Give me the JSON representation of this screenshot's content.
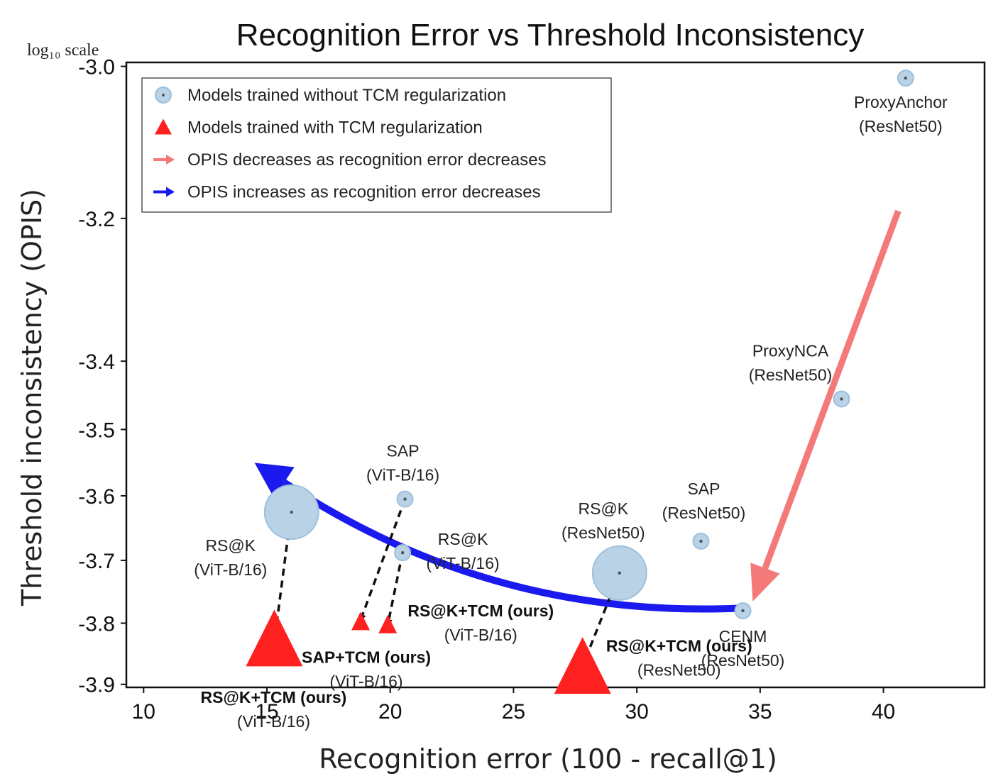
{
  "chart_data": {
    "type": "scatter",
    "title": "Recognition Error vs Threshold Inconsistency",
    "xlabel": "Recognition error (100 - recall@1)",
    "ylabel": "Threshold inconsistency (OPIS)",
    "y_scale_note": "log₁₀ scale",
    "xlim": [
      9.3,
      44.1
    ],
    "ylim": [
      -3.905,
      -2.995
    ],
    "x_ticks": [
      10,
      15,
      20,
      25,
      30,
      35,
      40
    ],
    "y_ticks": [
      -3.0,
      -3.2,
      -3.4,
      -3.5,
      -3.6,
      -3.7,
      -3.8,
      -3.9
    ],
    "legend": [
      {
        "label": "Models trained without TCM regularization",
        "marker": "circle",
        "color": "#b9d2e6"
      },
      {
        "label": "Models trained with TCM regularization",
        "marker": "triangle",
        "color": "#ff2020"
      },
      {
        "label": "OPIS decreases as recognition error decreases",
        "marker": "arrow",
        "color": "#f47a7a"
      },
      {
        "label": "OPIS increases as recognition error decreases",
        "marker": "arrow",
        "color": "#1a1aee"
      }
    ],
    "series": [
      {
        "name": "Models trained without TCM regularization",
        "marker": "circle",
        "color": "#b9d2e6",
        "points": [
          {
            "id": "proxyanchor",
            "x": 40.9,
            "y": -3.015,
            "size": 1,
            "label": "ProxyAnchor",
            "sublabel": "(ResNet50)"
          },
          {
            "id": "proxynca",
            "x": 38.3,
            "y": -3.455,
            "size": 1,
            "label": "ProxyNCA",
            "sublabel": "(ResNet50)"
          },
          {
            "id": "sap-resnet",
            "x": 32.6,
            "y": -3.67,
            "size": 1,
            "label": "SAP",
            "sublabel": "(ResNet50)"
          },
          {
            "id": "rsk-resnet",
            "x": 29.3,
            "y": -3.72,
            "size": 5,
            "label": "RS@K",
            "sublabel": "(ResNet50)"
          },
          {
            "id": "cenm",
            "x": 34.3,
            "y": -3.78,
            "size": 1,
            "label": "CENM",
            "sublabel": "(ResNet50)"
          },
          {
            "id": "sap-vit",
            "x": 20.6,
            "y": -3.605,
            "size": 1,
            "label": "SAP",
            "sublabel": "(ViT-B/16)"
          },
          {
            "id": "rsk-vit-small",
            "x": 20.5,
            "y": -3.688,
            "size": 1,
            "label": "RS@K",
            "sublabel": "(ViT-B/16)"
          },
          {
            "id": "rsk-vit-large",
            "x": 16.0,
            "y": -3.625,
            "size": 5,
            "label": "RS@K",
            "sublabel": "(ViT-B/16)"
          }
        ]
      },
      {
        "name": "Models trained with TCM regularization",
        "marker": "triangle",
        "color": "#ff2020",
        "points": [
          {
            "id": "rsk-tcm-vit-large",
            "x": 15.3,
            "y": -3.835,
            "size": 5,
            "label": "RS@K+TCM (ours)",
            "sublabel": "(ViT-B/16)"
          },
          {
            "id": "sap-tcm-vit",
            "x": 18.8,
            "y": -3.8,
            "size": 1,
            "label": "SAP+TCM (ours)",
            "sublabel": "(ViT-B/16)"
          },
          {
            "id": "rsk-tcm-vit-small",
            "x": 19.9,
            "y": -3.805,
            "size": 1,
            "label": "RS@K+TCM (ours)",
            "sublabel": "(ViT-B/16)"
          },
          {
            "id": "rsk-tcm-resnet",
            "x": 27.8,
            "y": -3.88,
            "size": 5,
            "label": "RS@K+TCM (ours)",
            "sublabel": "(ResNet50)"
          }
        ]
      }
    ],
    "dashed_arrows": [
      {
        "from": [
          16.0,
          -3.62
        ],
        "to": [
          15.3,
          -3.83
        ]
      },
      {
        "from": [
          20.6,
          -3.605
        ],
        "to": [
          18.8,
          -3.795
        ]
      },
      {
        "from": [
          20.5,
          -3.688
        ],
        "to": [
          19.9,
          -3.803
        ]
      },
      {
        "from": [
          29.3,
          -3.72
        ],
        "to": [
          27.8,
          -3.87
        ]
      }
    ],
    "trend_arrows": [
      {
        "name": "OPIS decreases as recognition error decreases",
        "color": "#f47a7a",
        "from": [
          40.6,
          -3.19
        ],
        "to": [
          34.7,
          -3.765
        ]
      },
      {
        "name": "OPIS increases as recognition error decreases",
        "color": "#1a1aee",
        "from": [
          34.1,
          -3.776
        ],
        "to": [
          14.5,
          -3.55
        ]
      }
    ]
  }
}
